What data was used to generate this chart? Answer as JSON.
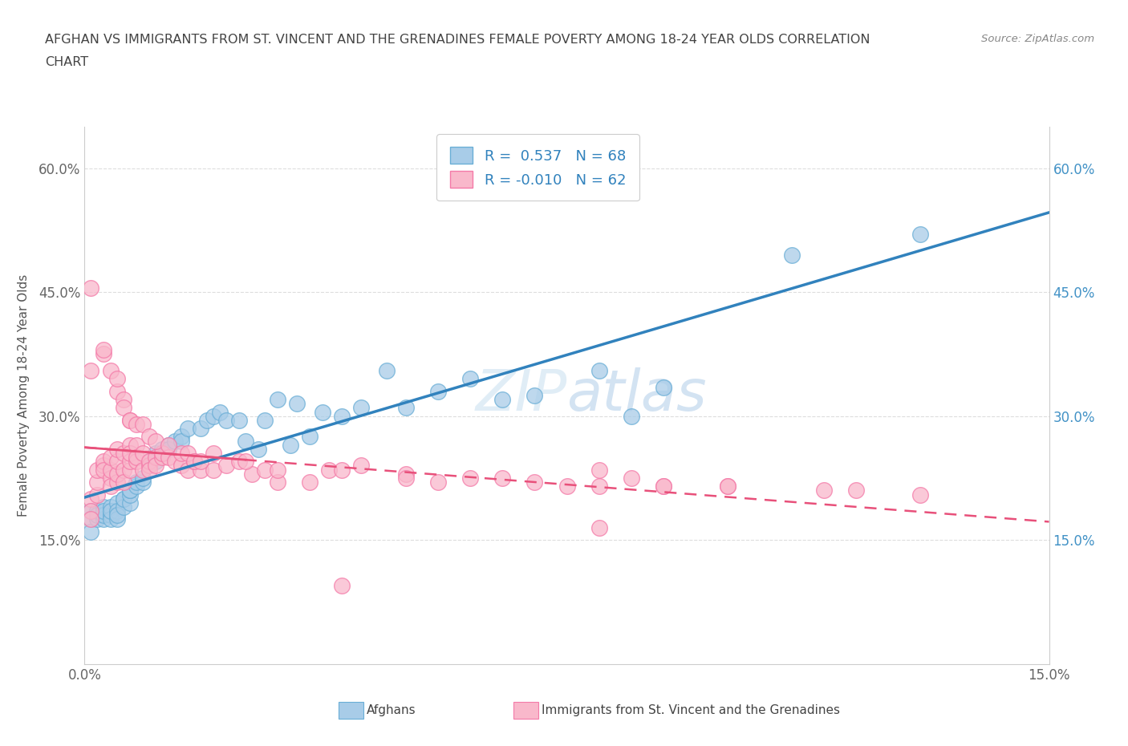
{
  "title_line1": "AFGHAN VS IMMIGRANTS FROM ST. VINCENT AND THE GRENADINES FEMALE POVERTY AMONG 18-24 YEAR OLDS CORRELATION",
  "title_line2": "CHART",
  "source_text": "Source: ZipAtlas.com",
  "ylabel": "Female Poverty Among 18-24 Year Olds",
  "xlim": [
    0.0,
    0.15
  ],
  "ylim": [
    0.0,
    0.65
  ],
  "xtick_positions": [
    0.0,
    0.15
  ],
  "xtick_labels": [
    "0.0%",
    "15.0%"
  ],
  "ytick_positions": [
    0.0,
    0.15,
    0.3,
    0.45,
    0.6
  ],
  "ytick_labels": [
    "",
    "15.0%",
    "30.0%",
    "45.0%",
    "60.0%"
  ],
  "watermark": "ZIPatlas",
  "r_afghan": 0.537,
  "n_afghan": 68,
  "r_vincent": -0.01,
  "n_vincent": 62,
  "afghan_color": "#a8cce8",
  "afghan_edge": "#6aaed6",
  "vincent_color": "#f9b8cb",
  "vincent_edge": "#f47aa8",
  "trend_afghan_color": "#3182bd",
  "trend_vincent_color": "#e8507a",
  "legend_label_afghan": "Afghans",
  "legend_label_vincent": "Immigrants from St. Vincent and the Grenadines",
  "afghan_x": [
    0.001,
    0.001,
    0.001,
    0.002,
    0.002,
    0.002,
    0.003,
    0.003,
    0.003,
    0.003,
    0.004,
    0.004,
    0.004,
    0.004,
    0.005,
    0.005,
    0.005,
    0.005,
    0.006,
    0.006,
    0.006,
    0.007,
    0.007,
    0.007,
    0.007,
    0.008,
    0.008,
    0.009,
    0.009,
    0.01,
    0.01,
    0.011,
    0.011,
    0.012,
    0.012,
    0.013,
    0.013,
    0.014,
    0.015,
    0.015,
    0.016,
    0.018,
    0.019,
    0.02,
    0.021,
    0.022,
    0.024,
    0.025,
    0.027,
    0.028,
    0.03,
    0.032,
    0.033,
    0.035,
    0.037,
    0.04,
    0.043,
    0.047,
    0.05,
    0.055,
    0.06,
    0.065,
    0.07,
    0.08,
    0.085,
    0.09,
    0.11,
    0.13
  ],
  "afghan_y": [
    0.185,
    0.175,
    0.16,
    0.175,
    0.185,
    0.18,
    0.19,
    0.175,
    0.18,
    0.185,
    0.18,
    0.19,
    0.175,
    0.185,
    0.195,
    0.185,
    0.175,
    0.18,
    0.2,
    0.19,
    0.2,
    0.195,
    0.205,
    0.21,
    0.21,
    0.215,
    0.22,
    0.22,
    0.225,
    0.24,
    0.245,
    0.245,
    0.255,
    0.26,
    0.255,
    0.265,
    0.26,
    0.27,
    0.275,
    0.27,
    0.285,
    0.285,
    0.295,
    0.3,
    0.305,
    0.295,
    0.295,
    0.27,
    0.26,
    0.295,
    0.32,
    0.265,
    0.315,
    0.275,
    0.305,
    0.3,
    0.31,
    0.355,
    0.31,
    0.33,
    0.345,
    0.32,
    0.325,
    0.355,
    0.3,
    0.335,
    0.495,
    0.52
  ],
  "vincent_x": [
    0.001,
    0.001,
    0.001,
    0.002,
    0.002,
    0.002,
    0.003,
    0.003,
    0.003,
    0.004,
    0.004,
    0.004,
    0.004,
    0.005,
    0.005,
    0.005,
    0.005,
    0.006,
    0.006,
    0.006,
    0.007,
    0.007,
    0.007,
    0.007,
    0.008,
    0.008,
    0.008,
    0.009,
    0.009,
    0.01,
    0.01,
    0.01,
    0.011,
    0.011,
    0.012,
    0.012,
    0.013,
    0.014,
    0.015,
    0.016,
    0.017,
    0.018,
    0.02,
    0.022,
    0.024,
    0.026,
    0.028,
    0.03,
    0.035,
    0.038,
    0.043,
    0.05,
    0.055,
    0.06,
    0.065,
    0.07,
    0.075,
    0.08,
    0.09,
    0.1,
    0.115,
    0.13
  ],
  "vincent_y": [
    0.2,
    0.185,
    0.175,
    0.205,
    0.22,
    0.235,
    0.24,
    0.245,
    0.235,
    0.225,
    0.215,
    0.235,
    0.25,
    0.22,
    0.23,
    0.245,
    0.26,
    0.235,
    0.22,
    0.255,
    0.235,
    0.245,
    0.265,
    0.255,
    0.265,
    0.245,
    0.25,
    0.235,
    0.255,
    0.24,
    0.245,
    0.235,
    0.25,
    0.24,
    0.25,
    0.255,
    0.25,
    0.245,
    0.24,
    0.235,
    0.245,
    0.235,
    0.235,
    0.24,
    0.245,
    0.23,
    0.235,
    0.22,
    0.22,
    0.235,
    0.24,
    0.23,
    0.22,
    0.225,
    0.225,
    0.22,
    0.215,
    0.215,
    0.215,
    0.215,
    0.21,
    0.205
  ],
  "vincent_outlier_x": [
    0.001,
    0.001,
    0.003,
    0.003,
    0.004,
    0.005,
    0.005,
    0.006,
    0.006,
    0.007,
    0.007,
    0.008,
    0.009,
    0.01,
    0.011,
    0.013,
    0.015,
    0.016,
    0.017,
    0.018,
    0.02,
    0.025,
    0.03,
    0.04,
    0.05,
    0.08,
    0.085,
    0.09,
    0.1,
    0.12,
    0.04,
    0.08
  ],
  "vincent_outlier_y": [
    0.455,
    0.355,
    0.375,
    0.38,
    0.355,
    0.33,
    0.345,
    0.32,
    0.31,
    0.295,
    0.295,
    0.29,
    0.29,
    0.275,
    0.27,
    0.265,
    0.255,
    0.255,
    0.245,
    0.245,
    0.255,
    0.245,
    0.235,
    0.235,
    0.225,
    0.235,
    0.225,
    0.215,
    0.215,
    0.21,
    0.095,
    0.165
  ]
}
